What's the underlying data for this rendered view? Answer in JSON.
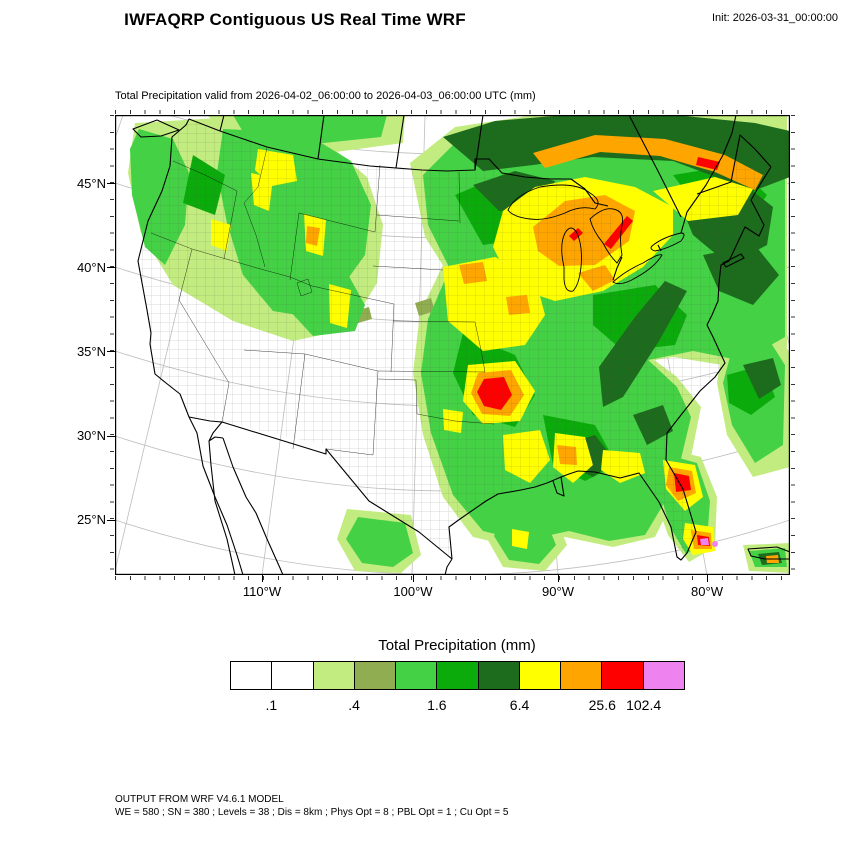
{
  "header": {
    "title": "IWFAQRP Contiguous US Real Time WRF",
    "init_label": "Init: 2026-03-31_00:00:00"
  },
  "map": {
    "subtitle": "Total Precipitation valid from 2026-04-02_06:00:00 to 2026-04-03_06:00:00 UTC   (mm)",
    "lat_labels": [
      "45°N",
      "40°N",
      "35°N",
      "30°N",
      "25°N"
    ],
    "lon_labels": [
      "110°W",
      "100°W",
      "90°W",
      "80°W"
    ]
  },
  "legend": {
    "title": "Total Precipitation  (mm)",
    "colors": [
      "#ffffff",
      "#ffffff",
      "#c3ec80",
      "#90ad52",
      "#45d145",
      "#0cab0c",
      "#1d6b1d",
      "#ffff00",
      "#ffa500",
      "#ff0000",
      "#ee82ee"
    ],
    "ticks": [
      {
        "label": ".1",
        "boundary": 1
      },
      {
        "label": ".4",
        "boundary": 3
      },
      {
        "label": "1.6",
        "boundary": 5
      },
      {
        "label": "6.4",
        "boundary": 7
      },
      {
        "label": "25.6",
        "boundary": 9
      },
      {
        "label": "102.4",
        "boundary": 10
      }
    ]
  },
  "chart_data": {
    "type": "heatmap",
    "title": "Total Precipitation (mm)",
    "legend_levels_mm": [
      0.1,
      0.4,
      1.6,
      6.4,
      25.6,
      102.4
    ],
    "palette": [
      "#ffffff",
      "#ffffff",
      "#c3ec80",
      "#90ad52",
      "#45d145",
      "#0cab0c",
      "#1d6b1d",
      "#ffff00",
      "#ffa500",
      "#ff0000",
      "#ee82ee"
    ]
  },
  "footer": {
    "line1": "OUTPUT FROM WRF V4.6.1 MODEL",
    "line2": "WE = 580 ; SN = 380 ; Levels = 38 ; Dis = 8km ; Phys Opt = 8 ; PBL Opt = 1 ; Cu Opt = 5"
  }
}
